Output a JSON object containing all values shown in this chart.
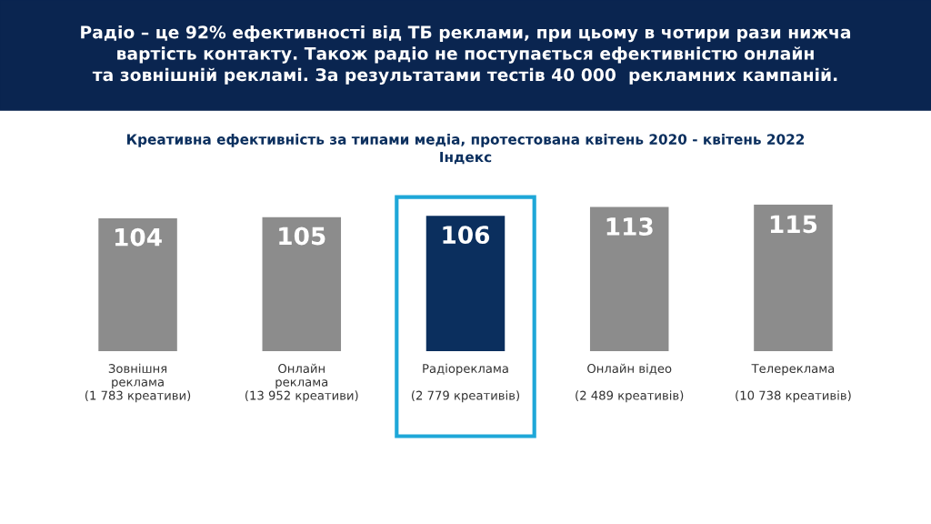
{
  "chart_data": {
    "type": "bar",
    "title": "Радіо – це 92% ефективності від ТБ реклами, при цьому в чотири рази нижча\nвартість контакту. Також радіо не поступається ефективністю онлайн\nта зовнішній рекламі. За результатами тестів 40 000  рекламних кампаній.",
    "subtitle": "Креативна ефективність за типами медіа, протестована квітень 2020 - квітень 2022\nІндекс",
    "categories": [
      "Зовнішня\nреклама\n(1 783 креативи)",
      "Онлайн\nреклама\n(13 952 креативи)",
      "Радіореклама\n\n(2 779 креативів)",
      "Онлайн відео\n\n(2 489 креативів)",
      "Телереклама\n\n(10 738 креативів)"
    ],
    "values": [
      104,
      105,
      106,
      113,
      115
    ],
    "colors": [
      "#8c8c8c",
      "#8c8c8c",
      "#0b2f5e",
      "#8c8c8c",
      "#8c8c8c"
    ],
    "data_labels": true,
    "grid": false,
    "legend": false
  }
}
